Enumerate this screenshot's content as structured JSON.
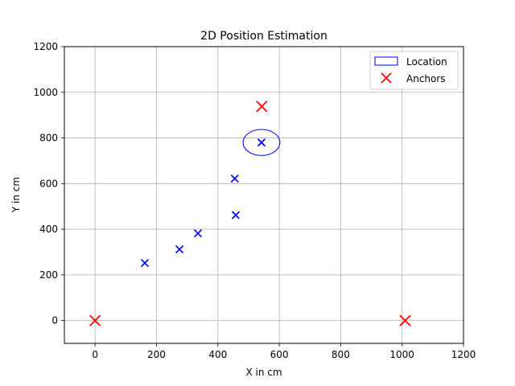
{
  "chart_data": {
    "type": "scatter",
    "title": "2D Position Estimation",
    "xlabel": "X in cm",
    "ylabel": "Y in cm",
    "xlim": [
      -100,
      1200
    ],
    "ylim": [
      -100,
      1200
    ],
    "xticks": [
      0,
      200,
      400,
      600,
      800,
      1000,
      1200
    ],
    "yticks": [
      0,
      200,
      400,
      600,
      800,
      1000,
      1200
    ],
    "grid": true,
    "legend_position": "top-right",
    "legend": [
      {
        "label": "Location",
        "marker": "ellipse",
        "color": "#0000ff"
      },
      {
        "label": "Anchors",
        "marker": "x",
        "color": "#ff0000"
      }
    ],
    "series": [
      {
        "color": "#0000ff",
        "marker": "x",
        "points": [
          {
            "x": 162,
            "y": 252
          },
          {
            "x": 275,
            "y": 312
          },
          {
            "x": 335,
            "y": 382
          },
          {
            "x": 455,
            "y": 622
          },
          {
            "x": 458,
            "y": 462
          },
          {
            "x": 542,
            "y": 780
          }
        ]
      },
      {
        "name": "Anchors",
        "color": "#ff0000",
        "marker": "x",
        "points": [
          {
            "x": 0,
            "y": 0
          },
          {
            "x": 1010,
            "y": 0
          },
          {
            "x": 543,
            "y": 938
          }
        ]
      }
    ],
    "ellipse": {
      "name": "Location",
      "color": "#0000ff",
      "cx": 542,
      "cy": 780,
      "rx": 60,
      "ry": 57
    }
  }
}
